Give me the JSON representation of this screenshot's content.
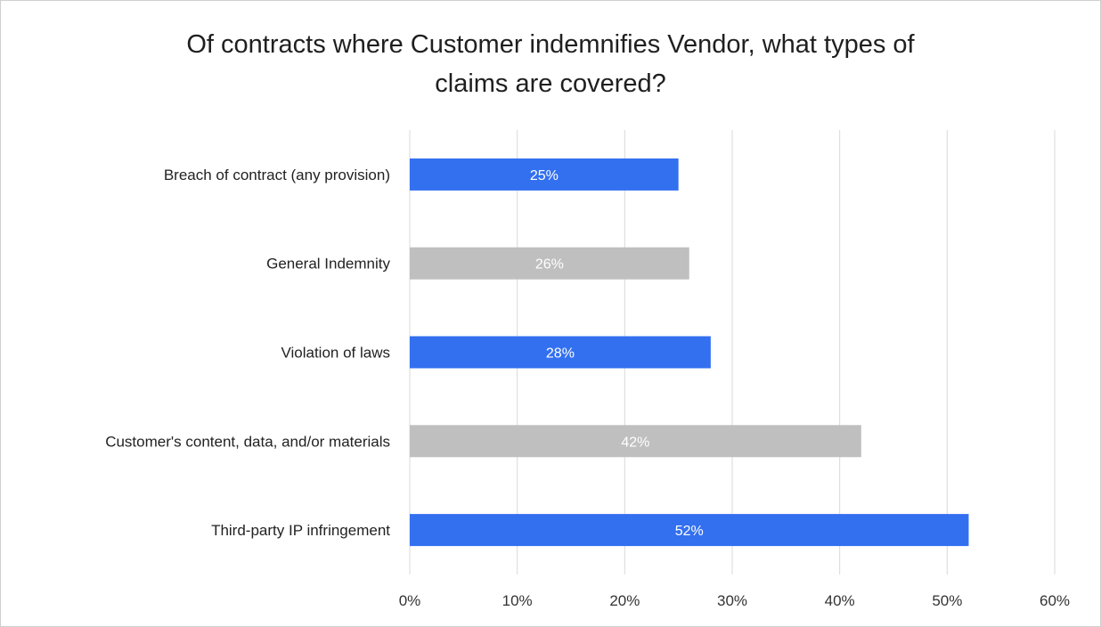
{
  "chart_data": {
    "type": "bar",
    "orientation": "horizontal",
    "title_lines": [
      "Of contracts where Customer indemnifies Vendor, what types of",
      "claims are covered?"
    ],
    "categories": [
      "Breach of contract (any provision)",
      "General Indemnity",
      "Violation of laws",
      "Customer's content, data, and/or materials",
      "Third-party IP infringement"
    ],
    "values": [
      25,
      26,
      28,
      42,
      52
    ],
    "data_labels": [
      "25%",
      "26%",
      "28%",
      "42%",
      "52%"
    ],
    "bar_colors": [
      "#3370F0",
      "#BFBFBF",
      "#3370F0",
      "#BFBFBF",
      "#3370F0"
    ],
    "x_ticks": [
      0,
      10,
      20,
      30,
      40,
      50,
      60
    ],
    "x_tick_labels": [
      "0%",
      "10%",
      "20%",
      "30%",
      "40%",
      "50%",
      "60%"
    ],
    "xlim": [
      0,
      60
    ],
    "grid": true,
    "legend": "none"
  }
}
